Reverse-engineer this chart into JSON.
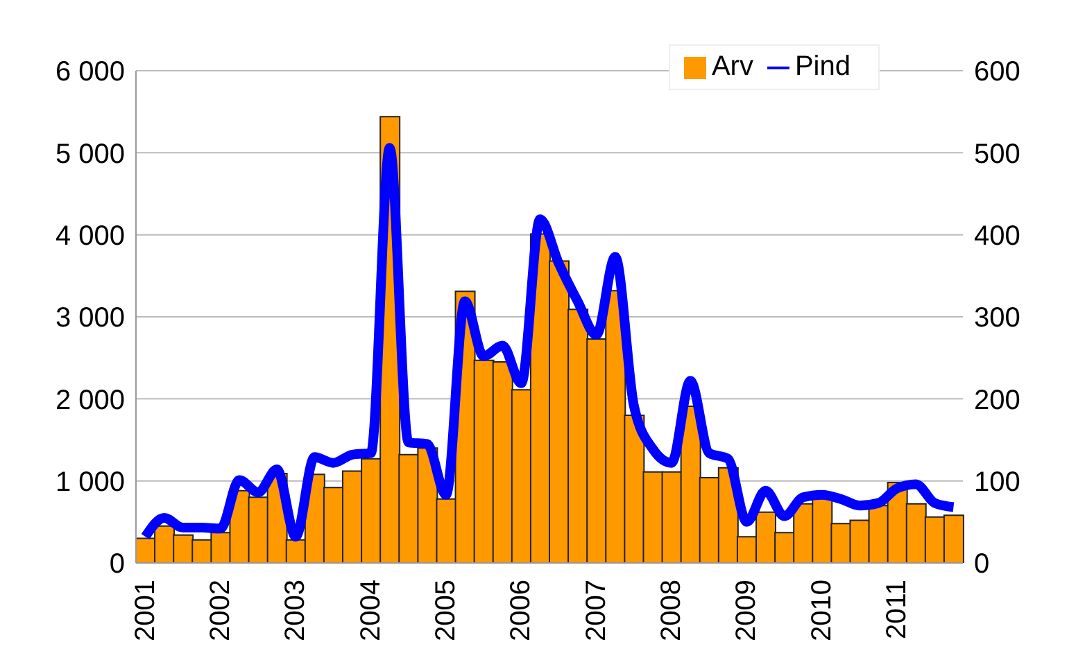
{
  "chart_data": {
    "type": "bar",
    "categories": [
      "2001",
      null,
      null,
      null,
      "2002",
      null,
      null,
      null,
      "2003",
      null,
      null,
      null,
      "2004",
      null,
      null,
      null,
      "2005",
      null,
      null,
      null,
      "2006",
      null,
      null,
      null,
      "2007",
      null,
      null,
      null,
      "2008",
      null,
      null,
      null,
      "2009",
      null,
      null,
      null,
      "2010",
      null,
      null,
      null,
      "2011",
      null,
      null,
      null
    ],
    "series": [
      {
        "name": "Arv",
        "color": "#ff9900",
        "values": [
          300,
          450,
          340,
          280,
          370,
          880,
          800,
          1090,
          280,
          1080,
          920,
          1120,
          1270,
          5440,
          1320,
          1400,
          780,
          3310,
          2470,
          2450,
          2110,
          4010,
          3680,
          3090,
          2730,
          3320,
          1800,
          1110,
          1110,
          1910,
          1040,
          1160,
          320,
          620,
          370,
          720,
          820,
          480,
          520,
          700,
          980,
          720,
          560,
          580
        ]
      },
      {
        "name": "Pind",
        "type": "line",
        "axis": "y2",
        "color": "#0000ff",
        "values": [
          32,
          55,
          43,
          43,
          42,
          101,
          86,
          114,
          32,
          129,
          122,
          132,
          134,
          506,
          147,
          145,
          83,
          319,
          252,
          265,
          219,
          419,
          365,
          319,
          278,
          373,
          191,
          139,
          122,
          222,
          134,
          127,
          50,
          88,
          57,
          80,
          83,
          78,
          70,
          73,
          91,
          96,
          73,
          68
        ]
      }
    ],
    "ylim": [
      0,
      6000
    ],
    "yticks": [
      0,
      {
        "value": 1000,
        "label": "1 000"
      },
      {
        "value": 2000,
        "label": "2 000"
      },
      {
        "value": 3000,
        "label": "3 000"
      },
      {
        "value": 4000,
        "label": "4 000"
      },
      {
        "value": 5000,
        "label": "5 000"
      },
      {
        "value": 6000,
        "label": "6 000"
      }
    ],
    "y2lim": [
      0,
      600
    ],
    "y2ticks": [
      0,
      100,
      200,
      300,
      400,
      500,
      600
    ],
    "grid": "y",
    "legend": "top right",
    "marker": "none",
    "line_style": "solid"
  }
}
